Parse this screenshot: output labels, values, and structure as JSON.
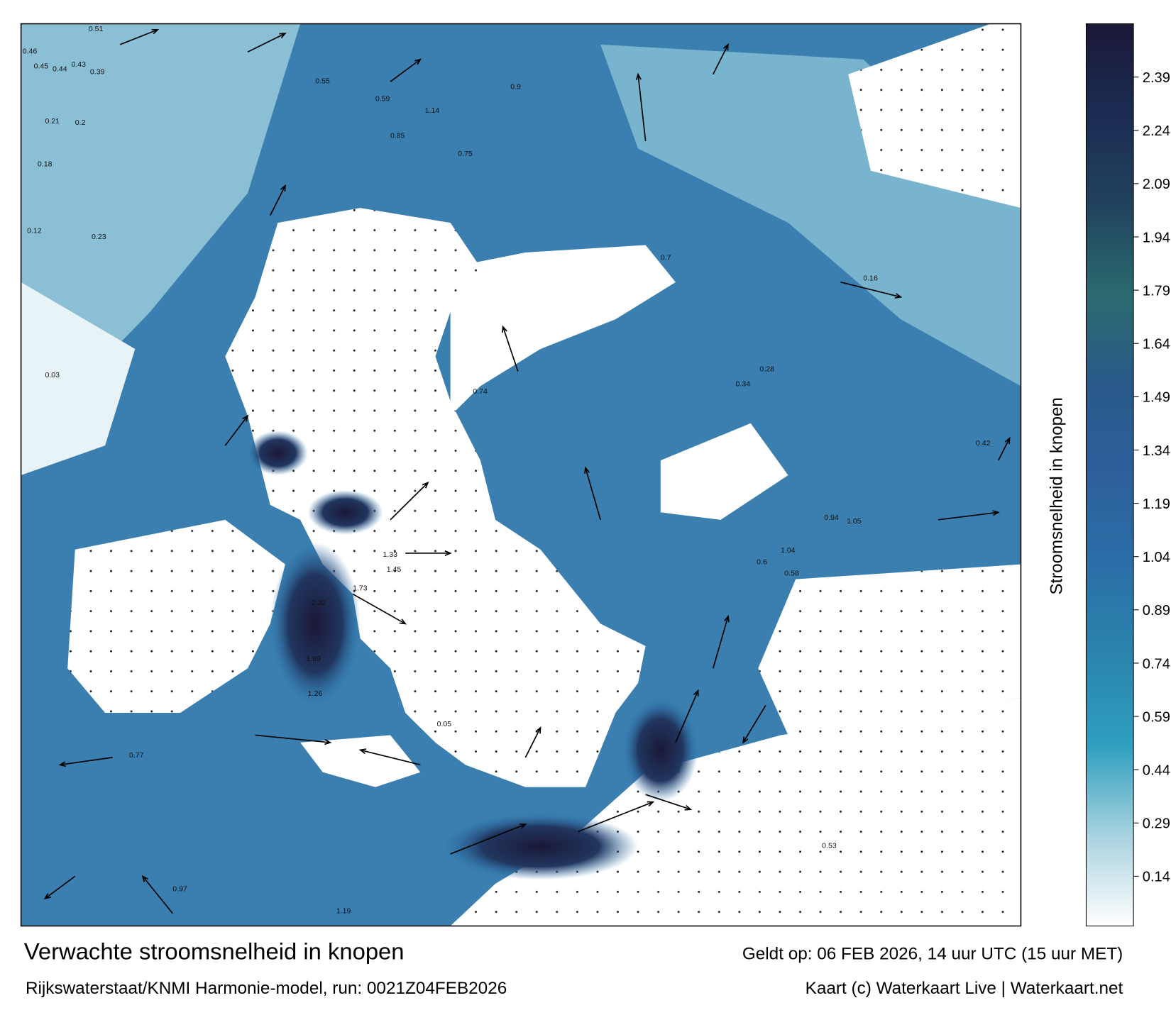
{
  "map": {
    "title": "Verwachte stroomsnelheid in knopen",
    "subtitle": "Rijkswaterstaat/KNMI Harmonie-model, run: 0021Z04FEB2026",
    "valid": "Geldt op: 06 FEB 2026, 14 uur UTC (15 uur MET)",
    "credit": "Kaart (c) Waterkaart Live | Waterkaart.net",
    "current_labels": [
      0.51,
      0.46,
      0.45,
      0.44,
      0.43,
      0.39,
      0.21,
      0.2,
      0.18,
      0.12,
      0.03,
      0.23,
      0.55,
      0.59,
      0.85,
      1.14,
      0.75,
      0.9,
      1.45,
      1.73,
      1.33,
      2.32,
      1.89,
      1.26,
      0.77,
      0.97,
      1.19,
      0.05,
      0.94,
      1.05,
      0.6,
      0.74,
      0.53,
      0.42,
      0.16,
      1.04,
      0.58,
      0.34,
      0.28,
      0.7
    ],
    "colorbar": {
      "label": "Stroomsnelheid in knopen",
      "lim": [
        0,
        2.54
      ],
      "ticks": [
        0.14,
        0.29,
        0.44,
        0.59,
        0.74,
        0.89,
        1.04,
        1.19,
        1.34,
        1.49,
        1.64,
        1.79,
        1.94,
        2.09,
        2.24,
        2.39
      ],
      "colors": [
        "#ffffff",
        "#a8d2df",
        "#2f9fbf",
        "#2a84ac",
        "#2b6fa8",
        "#2d5f9c",
        "#2a5a8a",
        "#2a6b6f",
        "#21425e",
        "#1b2c52",
        "#1b1838"
      ]
    }
  }
}
